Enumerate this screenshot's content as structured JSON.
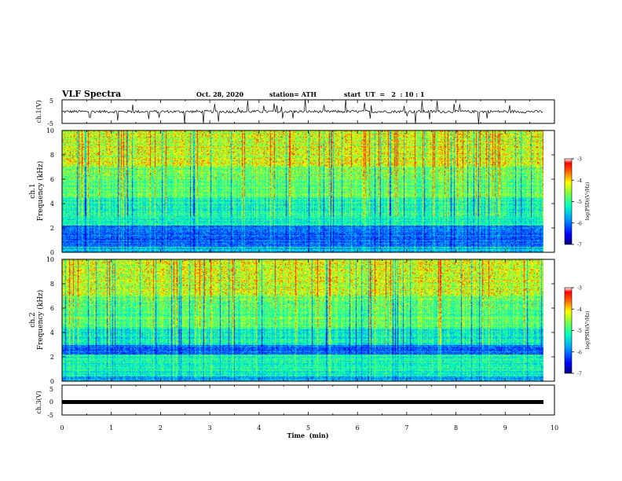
{
  "header": {
    "title": "VLF Spectra",
    "date": "Oct. 28, 2020",
    "station": "station= ATH",
    "start": "start  UT  =   2  : 10 : 1"
  },
  "colors": {
    "colormap": [
      "#000080",
      "#0000ff",
      "#0080ff",
      "#00ffff",
      "#80ff80",
      "#ffff00",
      "#ff8000",
      "#ff0000",
      "#800000"
    ],
    "waveform": "#000000"
  },
  "chart_data": [
    {
      "type": "line",
      "panel": "ch1-waveform",
      "ylabel": "ch.1(V)",
      "ylim": [
        -5,
        5
      ],
      "y_ticks": [
        "5",
        "-5"
      ],
      "xlim": [
        0,
        10
      ],
      "description_level": 0,
      "series": [
        {
          "values_summary": "noisy waveform around 0 V, spikes to about ±5 V"
        }
      ]
    },
    {
      "type": "heatmap",
      "panel": "ch1-spectrogram",
      "ylabel": "ch.1\nFrequency (kHz)",
      "ylabel_line1": "ch.1",
      "ylabel_line2": "Frequency (kHz)",
      "ylim": [
        0,
        10
      ],
      "y_ticks": [
        "0",
        "2",
        "4",
        "6",
        "8",
        "10"
      ],
      "xlim": [
        0,
        10
      ],
      "colorbar": {
        "label": "log(PSD)(V²/Hz)",
        "range": [
          -7,
          -3
        ],
        "ticks": [
          "-3",
          "-4",
          "-5",
          "-6",
          "-7"
        ]
      },
      "low_band_khz": [
        0.5,
        2.2
      ]
    },
    {
      "type": "heatmap",
      "panel": "ch2-spectrogram",
      "ylabel": "ch.2\nFrequency (kHz)",
      "ylabel_line1": "ch.2",
      "ylabel_line2": "Frequency (kHz)",
      "ylim": [
        0,
        10
      ],
      "y_ticks": [
        "0",
        "2",
        "4",
        "6",
        "8",
        "10"
      ],
      "xlim": [
        0,
        10
      ],
      "colorbar": {
        "label": "log(PSD)(V²/Hz)",
        "range": [
          -7,
          -3
        ],
        "ticks": [
          "-3",
          "-4",
          "-5",
          "-6",
          "-7"
        ]
      },
      "low_band_khz": [
        2.2,
        3.0
      ]
    },
    {
      "type": "line",
      "panel": "ch3-waveform",
      "ylabel": "ch.3(V)",
      "ylim": [
        -5,
        5
      ],
      "y_ticks": [
        "5",
        "0",
        "-5"
      ],
      "xlim": [
        0,
        10
      ],
      "series": [
        {
          "values_summary": "flat thick trace near 0 V"
        }
      ]
    }
  ],
  "xaxis": {
    "label": "Time  (min)",
    "ticks": [
      "0",
      "1",
      "2",
      "3",
      "4",
      "5",
      "6",
      "7",
      "8",
      "9",
      "10"
    ]
  }
}
